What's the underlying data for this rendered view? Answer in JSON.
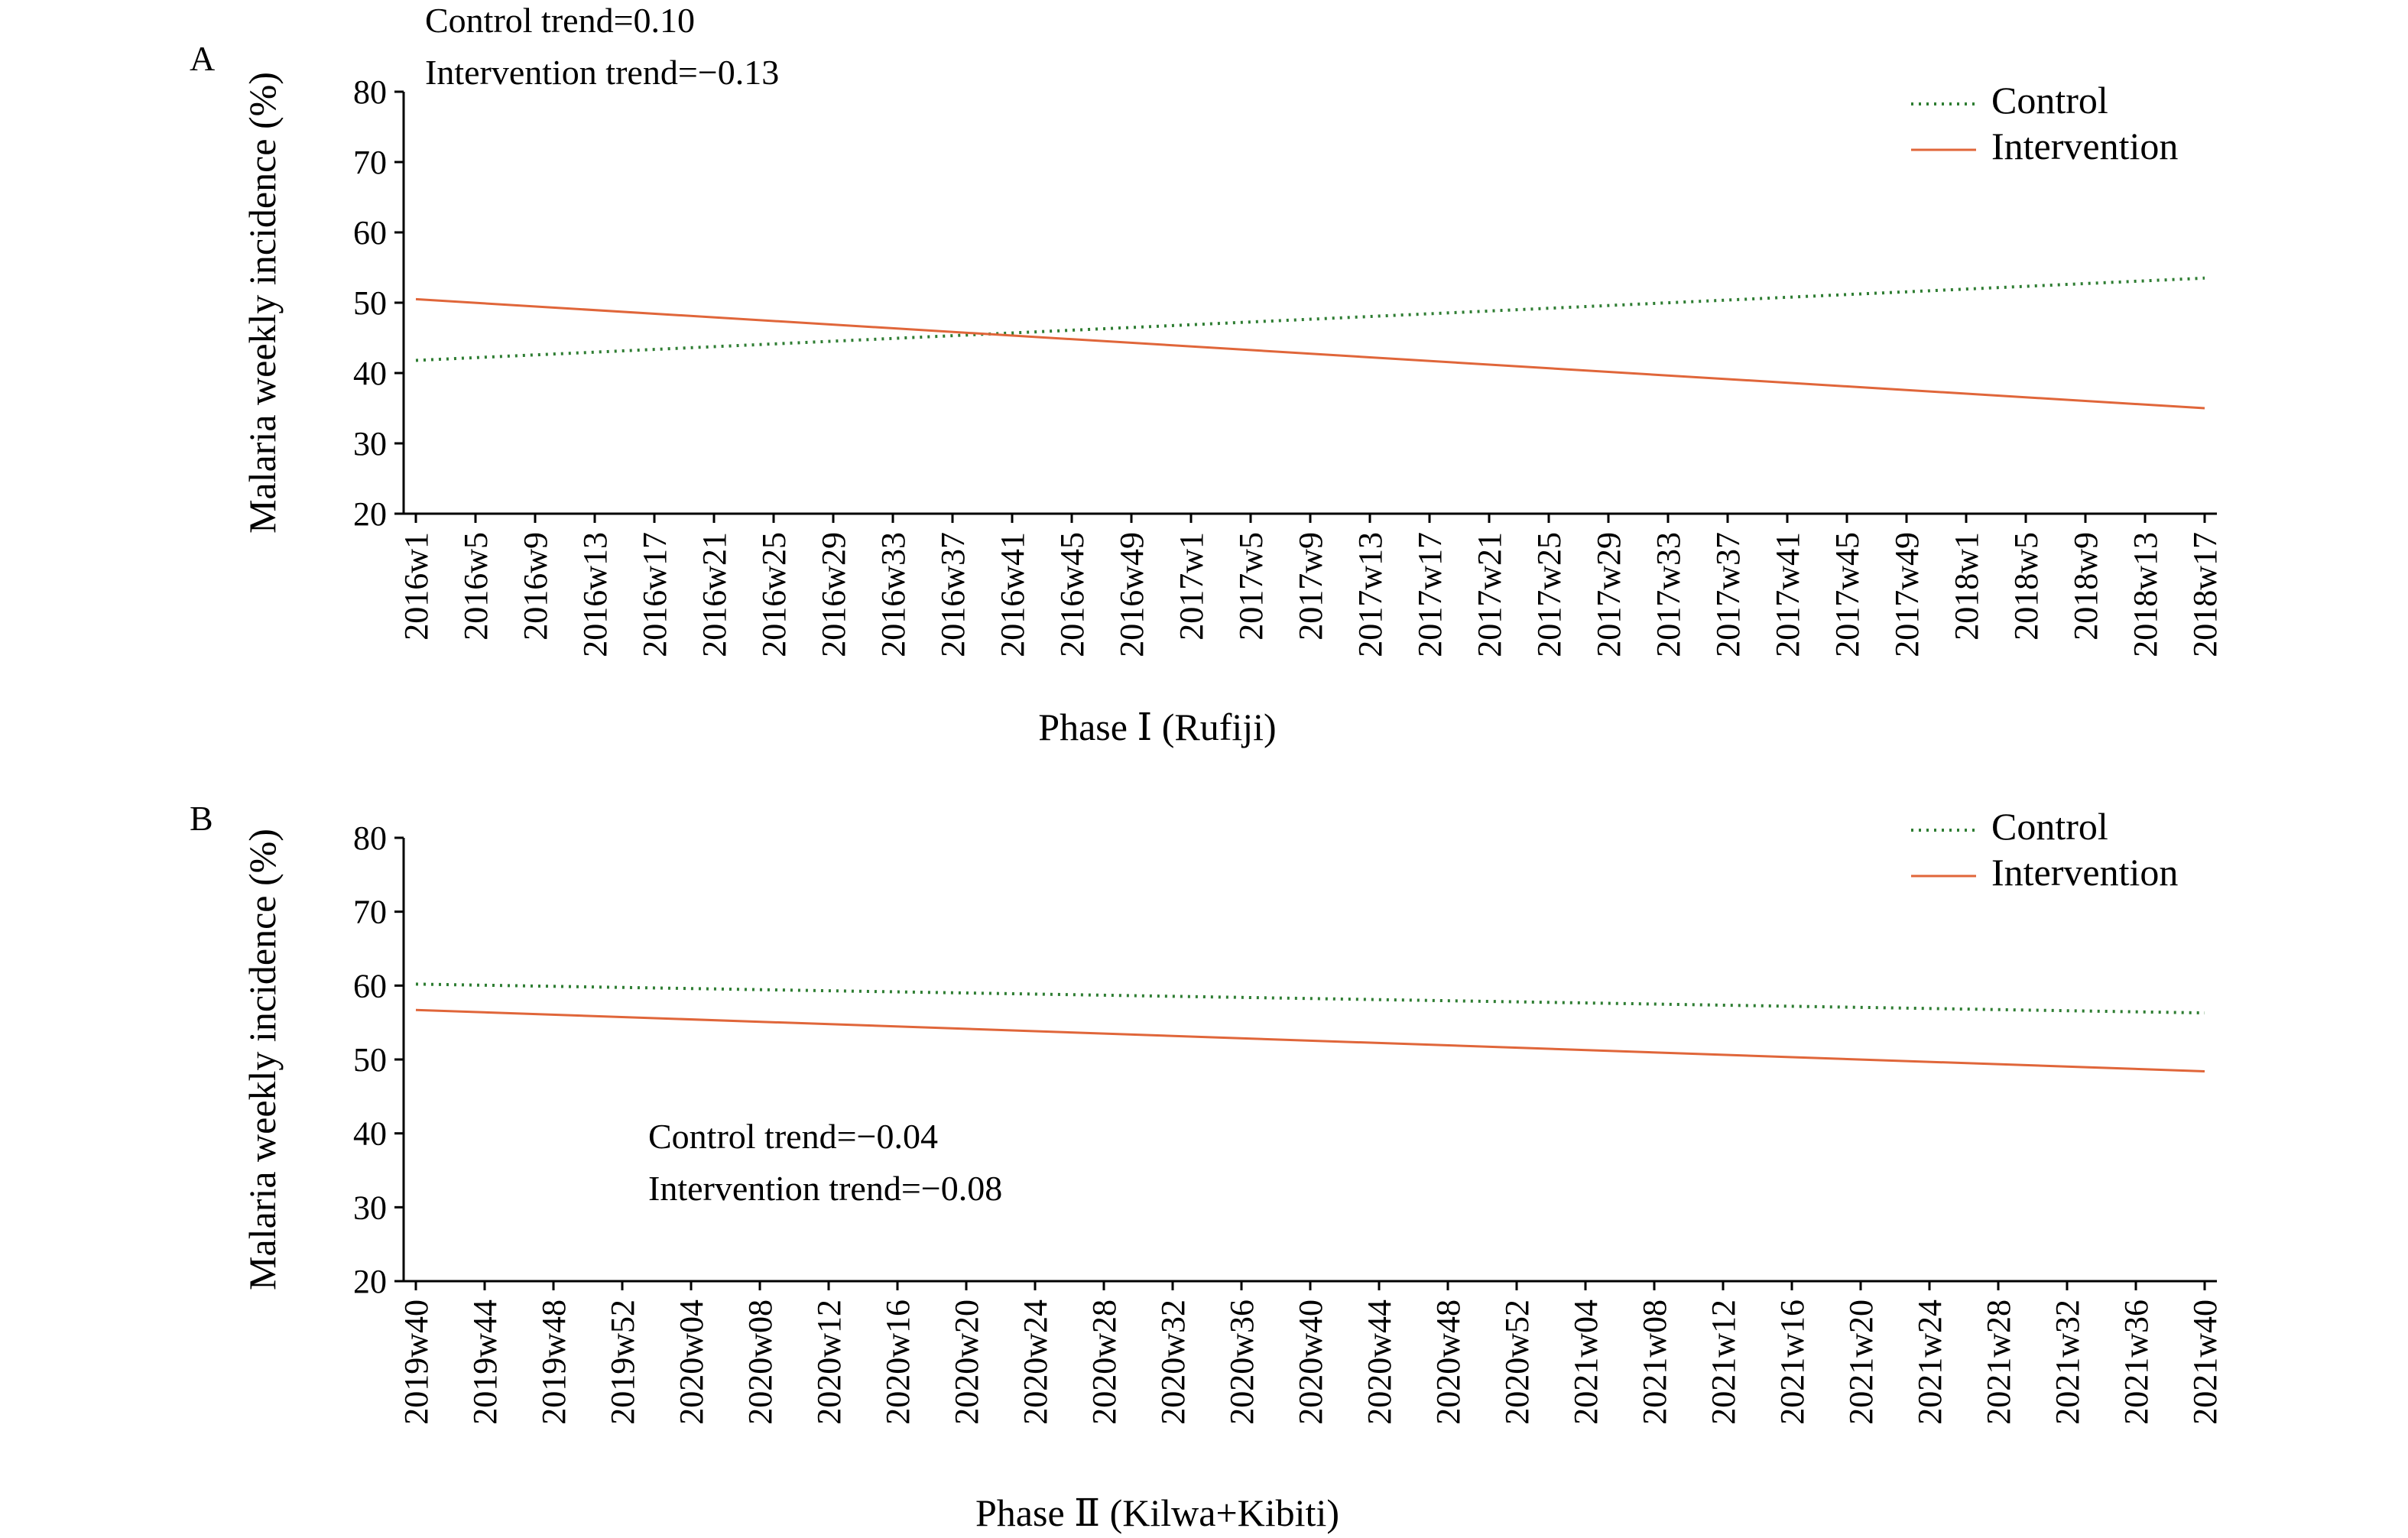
{
  "colors": {
    "control": "#2e7d32",
    "intervention": "#e0663a",
    "axis": "#000000"
  },
  "legend": {
    "control": "Control",
    "intervention": "Intervention"
  },
  "chart_data": [
    {
      "type": "line",
      "panel": "A",
      "xlabel": "Phase Ⅰ (Rufiji)",
      "ylabel": "Malaria  weekly incidence (%)",
      "ylim": [
        20,
        80
      ],
      "yticks": [
        "80",
        "70",
        "60",
        "50",
        "40",
        "30",
        "20"
      ],
      "legend_position": "top-right",
      "annotations": [
        "Control trend=0.10",
        "Intervention trend=−0.13"
      ],
      "categories": [
        "2016w1",
        "2016w5",
        "2016w9",
        "2016w13",
        "2016w17",
        "2016w21",
        "2016w25",
        "2016w29",
        "2016w33",
        "2016w37",
        "2016w41",
        "2016w45",
        "2016w49",
        "2017w1",
        "2017w5",
        "2017w9",
        "2017w13",
        "2017w17",
        "2017w21",
        "2017w25",
        "2017w29",
        "2017w33",
        "2017w37",
        "2017w41",
        "2017w45",
        "2017w49",
        "2018w1",
        "2018w5",
        "2018w9",
        "2018w13",
        "2018w17"
      ],
      "series": [
        {
          "name": "Control",
          "style": "dotted",
          "trend": [
            41.8,
            53.5
          ]
        },
        {
          "name": "Intervention",
          "style": "solid",
          "trend": [
            50.5,
            35.0
          ]
        }
      ]
    },
    {
      "type": "line",
      "panel": "B",
      "xlabel": "Phase Ⅱ (Kilwa+Kibiti)",
      "ylabel": "Malaria  weekly incidence (%)",
      "ylim": [
        20,
        80
      ],
      "yticks": [
        "80",
        "70",
        "60",
        "50",
        "40",
        "30",
        "20"
      ],
      "legend_position": "top-right",
      "annotations": [
        "Control trend=−0.04",
        "Intervention trend=−0.08"
      ],
      "categories": [
        "2019w40",
        "2019w44",
        "2019w48",
        "2019w52",
        "2020w04",
        "2020w08",
        "2020w12",
        "2020w16",
        "2020w20",
        "2020w24",
        "2020w28",
        "2020w32",
        "2020w36",
        "2020w40",
        "2020w44",
        "2020w48",
        "2020w52",
        "2021w04",
        "2021w08",
        "2021w12",
        "2021w16",
        "2021w20",
        "2021w24",
        "2021w28",
        "2021w32",
        "2021w36",
        "2021w40"
      ],
      "series": [
        {
          "name": "Control",
          "style": "dotted",
          "trend": [
            60.2,
            56.3
          ]
        },
        {
          "name": "Intervention",
          "style": "solid",
          "trend": [
            56.7,
            48.4
          ]
        }
      ]
    }
  ]
}
